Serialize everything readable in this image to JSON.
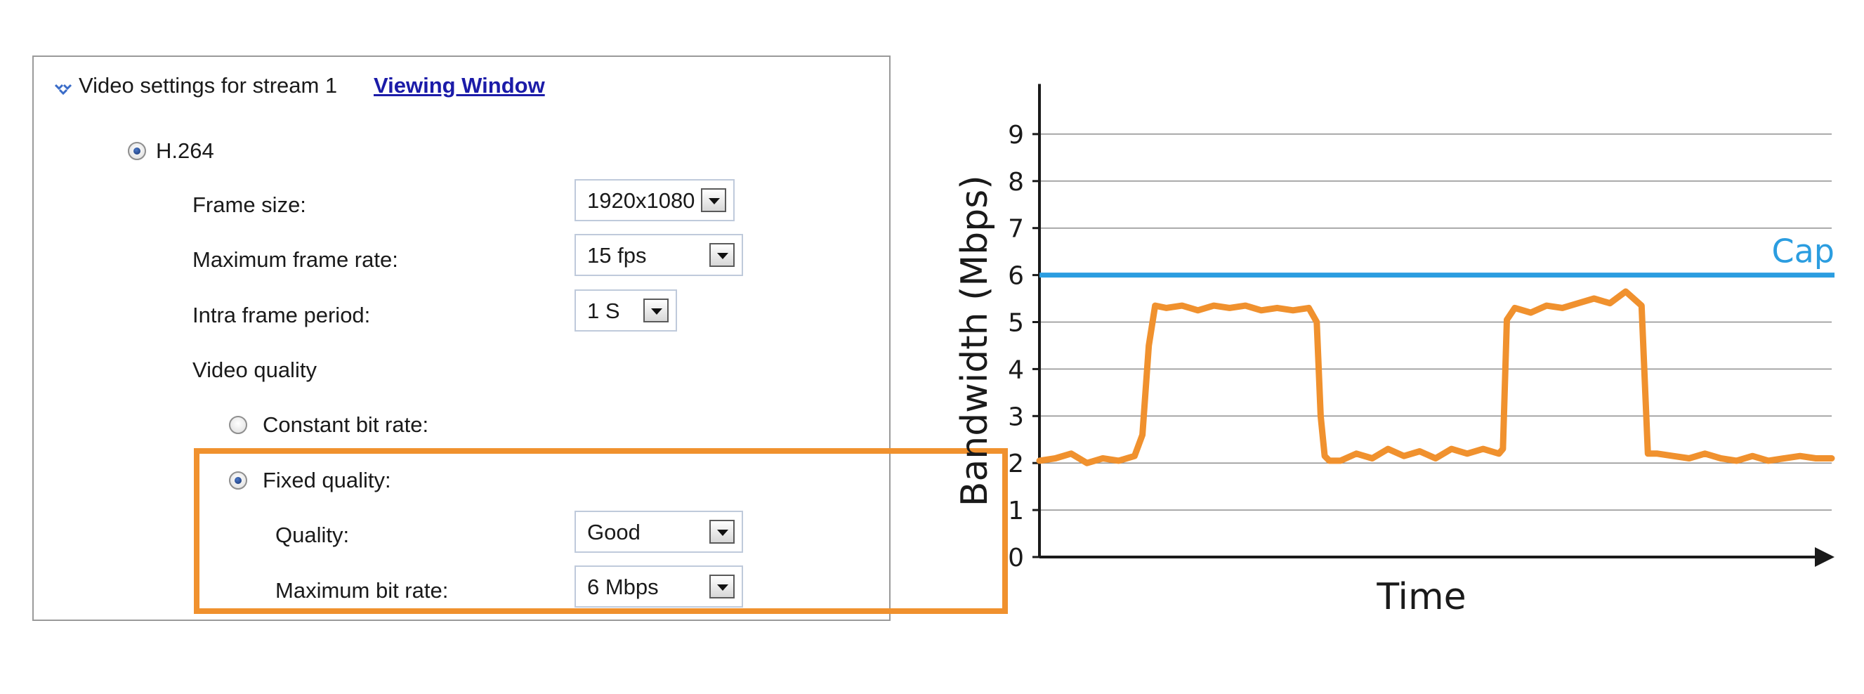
{
  "settings": {
    "header": {
      "title": "Video settings for stream 1",
      "link": "Viewing Window"
    },
    "codec": {
      "label": "H.264",
      "selected": true
    },
    "frame_size": {
      "label": "Frame size:",
      "value": "1920x1080"
    },
    "max_frame_rate": {
      "label": "Maximum frame rate:",
      "value": "15 fps"
    },
    "intra_frame_period": {
      "label": "Intra frame period:",
      "value": "1 S"
    },
    "video_quality": {
      "label": "Video quality"
    },
    "constant_bit_rate": {
      "label": "Constant bit rate:",
      "selected": false
    },
    "fixed_quality": {
      "label": "Fixed quality:",
      "selected": true
    },
    "quality": {
      "label": "Quality:",
      "value": "Good"
    },
    "max_bit_rate": {
      "label": "Maximum bit rate:",
      "value": "6 Mbps"
    },
    "highlight_color": "#f0912e"
  },
  "chart_data": {
    "type": "line",
    "title": "",
    "xlabel": "Time",
    "ylabel": "Bandwidth (Mbps)",
    "ylim": [
      0,
      9.5
    ],
    "yticks": [
      "0",
      "1",
      "2",
      "3",
      "4",
      "5",
      "6",
      "7",
      "8",
      "9"
    ],
    "grid": true,
    "series": [
      {
        "color": "#f0912e",
        "x": [
          0,
          2,
          4,
          6,
          8,
          10,
          12,
          13,
          13.8,
          14.6,
          16,
          18,
          20,
          22,
          24,
          26,
          28,
          30,
          32,
          34,
          35,
          35.5,
          36,
          36.6,
          38,
          40,
          42,
          44,
          46,
          48,
          50,
          52,
          54,
          56,
          58,
          58.5,
          59,
          60,
          62,
          64,
          66,
          68,
          70,
          72,
          74,
          76,
          76.8,
          78,
          80,
          82,
          84,
          86,
          88,
          90,
          92,
          94,
          96,
          98,
          100
        ],
        "y": [
          2.05,
          2.1,
          2.2,
          2.0,
          2.1,
          2.05,
          2.15,
          2.6,
          4.5,
          5.35,
          5.3,
          5.35,
          5.25,
          5.35,
          5.3,
          5.35,
          5.25,
          5.3,
          5.25,
          5.3,
          5.0,
          3.0,
          2.15,
          2.05,
          2.05,
          2.2,
          2.1,
          2.3,
          2.15,
          2.25,
          2.1,
          2.3,
          2.2,
          2.3,
          2.2,
          2.3,
          5.05,
          5.3,
          5.2,
          5.35,
          5.3,
          5.4,
          5.5,
          5.4,
          5.65,
          5.35,
          2.2,
          2.2,
          2.15,
          2.1,
          2.2,
          2.1,
          2.05,
          2.15,
          2.05,
          2.1,
          2.15,
          2.1,
          2.1
        ]
      }
    ],
    "reference_line": {
      "label": "Cap",
      "y": 6,
      "color": "#2b9de0"
    }
  }
}
